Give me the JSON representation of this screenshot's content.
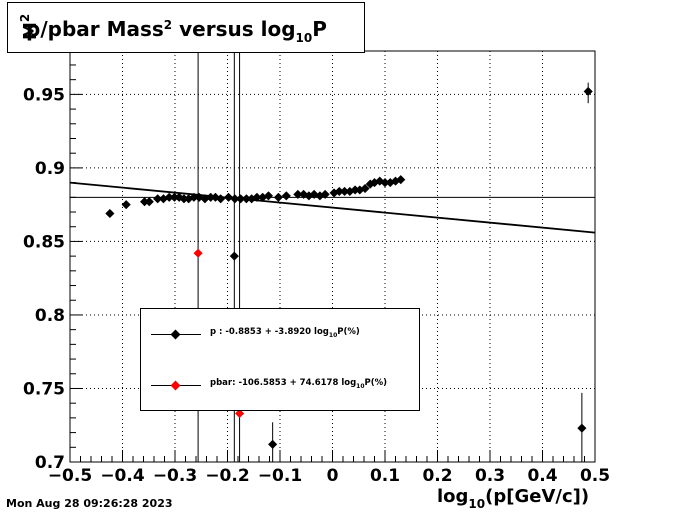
{
  "chart_data": {
    "type": "scatter",
    "title": {
      "base": "p/pbar Mass",
      "sup": "2",
      "mid": " versus log",
      "sub": "10",
      "end": "P"
    },
    "xlabel": {
      "base": "log",
      "sub": "10",
      "end": "(p[GeV/c])"
    },
    "ylabel": {
      "base": "M",
      "sup": "2"
    },
    "xlim": [
      -0.5,
      0.5
    ],
    "ylim": [
      0.7,
      0.9795
    ],
    "x_ticks": [
      -0.5,
      -0.4,
      -0.3,
      -0.2,
      -0.1,
      0,
      0.1,
      0.2,
      0.3,
      0.4,
      0.5
    ],
    "x_tick_labels": [
      "−0.5",
      "−0.4",
      "−0.3",
      "−0.2",
      "−0.1",
      "0",
      "0.1",
      "0.2",
      "0.3",
      "0.4",
      "0.5"
    ],
    "y_ticks": [
      0.7,
      0.75,
      0.8,
      0.85,
      0.9,
      0.95
    ],
    "y_tick_labels": [
      "0.7",
      "0.75",
      "0.8",
      "0.85",
      "0.9",
      "0.95"
    ],
    "grid": true,
    "reference_line_y": 0.88,
    "series": [
      {
        "name": "p",
        "color": "#000000",
        "points": [
          [
            -0.424,
            0.869
          ],
          [
            -0.393,
            0.875
          ],
          [
            -0.358,
            0.877
          ],
          [
            -0.349,
            0.877
          ],
          [
            -0.333,
            0.879
          ],
          [
            -0.322,
            0.879
          ],
          [
            -0.311,
            0.88
          ],
          [
            -0.301,
            0.88
          ],
          [
            -0.292,
            0.88
          ],
          [
            -0.283,
            0.879
          ],
          [
            -0.274,
            0.879
          ],
          [
            -0.264,
            0.88
          ],
          [
            -0.254,
            0.88
          ],
          [
            -0.243,
            0.879
          ],
          [
            -0.232,
            0.88
          ],
          [
            -0.223,
            0.88
          ],
          [
            -0.213,
            0.879
          ],
          [
            -0.198,
            0.88
          ],
          [
            -0.186,
            0.879
          ],
          [
            -0.175,
            0.879
          ],
          [
            -0.164,
            0.879
          ],
          [
            -0.154,
            0.879
          ],
          [
            -0.144,
            0.88
          ],
          [
            -0.133,
            0.88
          ],
          [
            -0.122,
            0.881
          ],
          [
            -0.103,
            0.88
          ],
          [
            -0.088,
            0.881
          ],
          [
            -0.066,
            0.882
          ],
          [
            -0.055,
            0.882
          ],
          [
            -0.045,
            0.881
          ],
          [
            -0.035,
            0.882
          ],
          [
            -0.024,
            0.881
          ],
          [
            -0.014,
            0.882
          ],
          [
            0.003,
            0.883
          ],
          [
            0.013,
            0.884
          ],
          [
            0.023,
            0.884
          ],
          [
            0.033,
            0.884
          ],
          [
            0.043,
            0.885
          ],
          [
            0.052,
            0.885
          ],
          [
            0.062,
            0.886
          ],
          [
            0.072,
            0.889
          ],
          [
            0.08,
            0.89
          ],
          [
            0.09,
            0.891
          ],
          [
            0.1,
            0.89
          ],
          [
            0.11,
            0.89
          ],
          [
            0.12,
            0.891
          ],
          [
            0.13,
            0.892
          ],
          [
            -0.187,
            0.84
          ],
          [
            -0.114,
            0.712
          ],
          [
            0.475,
            0.723
          ],
          [
            0.487,
            0.952
          ]
        ],
        "fit_label": "p   : -0.8853 + -3.8920 log",
        "fit_label_sub": "10",
        "fit_label_end": "P(%)"
      },
      {
        "name": "pbar",
        "color": "#ff0000",
        "points": [
          [
            -0.256,
            0.842
          ],
          [
            -0.177,
            0.733
          ]
        ],
        "fit_label": "pbar: -106.5853 + 74.6178 log",
        "fit_label_sub": "10",
        "fit_label_end": "P(%)"
      }
    ],
    "fit_line": {
      "x": [
        -0.5,
        0.5
      ],
      "y": [
        0.89,
        0.856
      ]
    }
  },
  "footer": {
    "timestamp": "Mon Aug 28 09:26:28 2023"
  }
}
